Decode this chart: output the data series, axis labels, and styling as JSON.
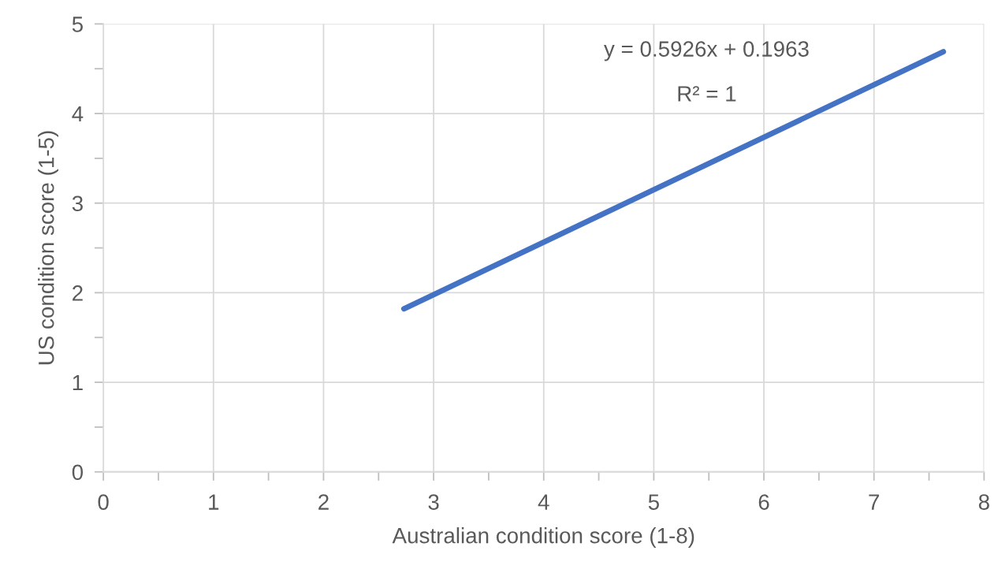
{
  "chart_data": {
    "type": "line",
    "xlabel": "Australian condition score (1-8)",
    "ylabel": "US condition score (1-5)",
    "series": [
      {
        "color": "#4472c4",
        "x": [
          2.73,
          7.63
        ],
        "values": [
          1.82,
          4.69
        ]
      }
    ],
    "xlim": [
      0,
      8
    ],
    "ylim": [
      0,
      5
    ],
    "xticks": [
      0,
      {
        "value": 0.5,
        "label": null
      },
      1,
      {
        "value": 1.5,
        "label": null
      },
      2,
      {
        "value": 2.5,
        "label": null
      },
      3,
      {
        "value": 3.5,
        "label": null
      },
      4,
      {
        "value": 4.5,
        "label": null
      },
      5,
      {
        "value": 5.5,
        "label": null
      },
      6,
      {
        "value": 6.5,
        "label": null
      },
      7,
      {
        "value": 7.5,
        "label": null
      },
      8
    ],
    "yticks": [
      0,
      {
        "value": 0.5,
        "label": null
      },
      1,
      {
        "value": 1.5,
        "label": null
      },
      2,
      {
        "value": 2.5,
        "label": null
      },
      3,
      {
        "value": 3.5,
        "label": null
      },
      4,
      {
        "value": 4.5,
        "label": null
      },
      5
    ],
    "grid": true,
    "marker": "none",
    "line_style": "solid",
    "legend": false,
    "annotations": [
      "y = 0.5926x + 0.1963",
      "R² = 1"
    ]
  }
}
